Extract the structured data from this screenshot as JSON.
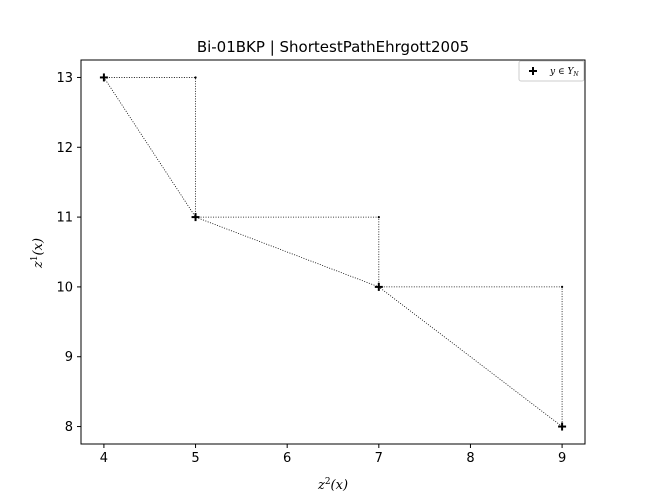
{
  "chart_data": {
    "type": "scatter",
    "title": "Bi-01BKP | ShortestPathEhrgott2005",
    "xlabel": {
      "base": "z",
      "sup": "2",
      "arg": "(x)"
    },
    "ylabel": {
      "base": "z",
      "sup": "1",
      "arg": "(x)"
    },
    "xlim": [
      3.75,
      9.25
    ],
    "ylim": [
      7.75,
      13.25
    ],
    "xticks": [
      4,
      5,
      6,
      7,
      8,
      9
    ],
    "yticks": [
      8,
      9,
      10,
      11,
      12,
      13
    ],
    "grid": false,
    "legend_position": "top-right",
    "series": [
      {
        "name": "y ∈ Y_N",
        "legend_text": "y ∈ Y",
        "legend_sub": "N",
        "marker": "plus",
        "color": "#000000",
        "x": [
          4,
          5,
          7,
          9
        ],
        "y": [
          13,
          11,
          10,
          8
        ]
      }
    ],
    "connecting_line": {
      "style": "dotted",
      "color": "#000000"
    },
    "staircase_corners": {
      "x": [
        5,
        7,
        9
      ],
      "y": [
        13,
        11,
        10
      ]
    }
  }
}
